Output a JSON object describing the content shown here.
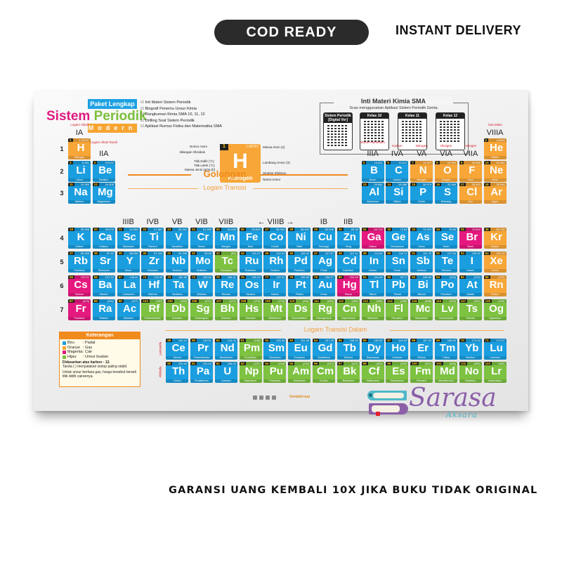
{
  "badges": {
    "cod": "COD READY",
    "instant": "INSTANT DELIVERY"
  },
  "footer_text": "GARANSI UANG KEMBALI 10X JIKA BUKU TIDAK ORIGINAL",
  "colors": {
    "padat": "#1a9ee0",
    "gas": "#f7a637",
    "cair": "#e5197f",
    "buatan": "#7dc241",
    "accent": "#f08a1c"
  },
  "poster": {
    "paket": "Paket Lengkap",
    "title_a": "Sistem",
    "title_b": "Periodik",
    "modern": "Modern",
    "checklist": [
      "Inti Materi Sistem Periodik",
      "Biografi Penemu Unsur Kimia",
      "Rangkuman Kimia SMA 10, 11, 12",
      "Drilling Soal Sistem Periodik",
      "Aplikasi Rumus Fisika dan Matematika SMA"
    ],
    "qr": {
      "title": "Inti Materi Kimia SMA",
      "subtitle": "Scan menggunakan Aplikasi Sistem Periodik Genta",
      "cards": [
        "Sistem Periodik [Digital Ver]",
        "Kelas 10",
        "Kelas 11",
        "Kelas 12"
      ]
    },
    "key": {
      "number": "1",
      "mass": "1.00797",
      "symbol": "H",
      "name": "Hidrogen",
      "left_labels": [
        "Nomor Atom",
        "Bilangan Oksidasi",
        "Titik Didih (°C)",
        "Titik Leleh (°C)",
        "Massa Jenis (g/mL(l))"
      ],
      "right_labels": [
        "Massa Atom (2)",
        "Lambang Unsur (3)",
        "Struktur Elektron",
        "Nama Unsur"
      ]
    },
    "golongan": "Golongan",
    "logam_transisi": "Logam Transisi",
    "logam_transisi_dalam": "Logam Transisi Dalam",
    "periods": [
      "1",
      "2",
      "3",
      "4",
      "5",
      "6",
      "7"
    ],
    "group_labels": {
      "IA": "IA",
      "IIA": "IIA",
      "IIIB": "IIIB",
      "IVB": "IVB",
      "VB": "VB",
      "VIB": "VIB",
      "VIIB": "VIIB",
      "VIIIB": "VIIIB",
      "IB": "IB",
      "IIB": "IIB",
      "IIIA": "IIIA",
      "IVA": "IVA",
      "VA": "VA",
      "VIA": "VIA",
      "VIIA": "VIIA",
      "VIIIA": "VIIIA"
    },
    "category_labels": {
      "IA": "Logam Alkali",
      "IIA": "Logam Alkali Tanah",
      "IIIA": "Boron-Aluminium",
      "IVA": "Karbon",
      "VA": "Nitrogen",
      "VIA": "Oksigen",
      "VIIA": "Halogen",
      "VIIIA": "Gas Mulia"
    },
    "series_labels": {
      "lanthanide": "Lantanida",
      "actinide": "Aktinida"
    },
    "legend": {
      "title": "Keterangan",
      "items": [
        [
          "Biru",
          ": Padat"
        ],
        [
          "Oranye",
          ": Gas"
        ],
        [
          "Magenta",
          ": Cair"
        ],
        [
          "Hijau",
          ": Unsur buatan"
        ]
      ],
      "note_bold": "Didasarkan atas karbon - 12.",
      "note1": "Tanda ( ) menyatakan isotop paling stabil.",
      "note2": "Untuk unsur berfasa gas, harga tersebut berarti titik didih cairannya."
    },
    "publisher": "GentaGroup",
    "brand": {
      "name": "Sarasa",
      "sub": "Aksara"
    }
  },
  "elements": [
    [
      1,
      "H",
      "Hidrogen",
      "1.00797",
      "g"
    ],
    [
      2,
      "He",
      "Helium",
      "4.0026",
      "g"
    ],
    [
      3,
      "Li",
      "Litium",
      "6.941",
      "s"
    ],
    [
      4,
      "Be",
      "Berilium",
      "9.0122",
      "s"
    ],
    [
      5,
      "B",
      "Boron",
      "10.811",
      "s"
    ],
    [
      6,
      "C",
      "Karbon",
      "12.011",
      "s"
    ],
    [
      7,
      "N",
      "Nitrogen",
      "14.007",
      "g"
    ],
    [
      8,
      "O",
      "Oksigen",
      "15.999",
      "g"
    ],
    [
      9,
      "F",
      "Fluor",
      "18.998",
      "g"
    ],
    [
      10,
      "Ne",
      "Neon",
      "20.180",
      "g"
    ],
    [
      11,
      "Na",
      "Natrium",
      "22.990",
      "s"
    ],
    [
      12,
      "Mg",
      "Magnesium",
      "24.305",
      "s"
    ],
    [
      13,
      "Al",
      "Aluminium",
      "26.982",
      "s"
    ],
    [
      14,
      "Si",
      "Silikon",
      "28.086",
      "s"
    ],
    [
      15,
      "P",
      "Fosfor",
      "30.974",
      "s"
    ],
    [
      16,
      "S",
      "Belerang",
      "32.065",
      "s"
    ],
    [
      17,
      "Cl",
      "Klor",
      "35.453",
      "g"
    ],
    [
      18,
      "Ar",
      "Argon",
      "39.948",
      "g"
    ],
    [
      19,
      "K",
      "Kalium",
      "39.098",
      "s"
    ],
    [
      20,
      "Ca",
      "Kalsium",
      "40.078",
      "s"
    ],
    [
      21,
      "Sc",
      "Skandium",
      "44.956",
      "s"
    ],
    [
      22,
      "Ti",
      "Titanium",
      "47.867",
      "s"
    ],
    [
      23,
      "V",
      "Vanadium",
      "50.942",
      "s"
    ],
    [
      24,
      "Cr",
      "Khrom",
      "51.996",
      "s"
    ],
    [
      25,
      "Mn",
      "Mangan",
      "54.938",
      "s"
    ],
    [
      26,
      "Fe",
      "Besi",
      "55.845",
      "s"
    ],
    [
      27,
      "Co",
      "Kobalt",
      "58.933",
      "s"
    ],
    [
      28,
      "Ni",
      "Nikel",
      "58.693",
      "s"
    ],
    [
      29,
      "Cu",
      "Tembaga",
      "63.546",
      "s"
    ],
    [
      30,
      "Zn",
      "Seng",
      "65.38",
      "s"
    ],
    [
      31,
      "Ga",
      "Galium",
      "69.723",
      "l"
    ],
    [
      32,
      "Ge",
      "Germanium",
      "72.63",
      "s"
    ],
    [
      33,
      "As",
      "Arsen",
      "74.922",
      "s"
    ],
    [
      34,
      "Se",
      "Selen",
      "78.96",
      "s"
    ],
    [
      35,
      "Br",
      "Brom",
      "79.904",
      "l"
    ],
    [
      36,
      "Kr",
      "Kripton",
      "83.798",
      "g"
    ],
    [
      37,
      "Rb",
      "Rubidium",
      "85.468",
      "s"
    ],
    [
      38,
      "Sr",
      "Stronsium",
      "87.62",
      "s"
    ],
    [
      39,
      "Y",
      "Itrium",
      "88.906",
      "s"
    ],
    [
      40,
      "Zr",
      "Zirkonium",
      "91.224",
      "s"
    ],
    [
      41,
      "Nb",
      "Niobium",
      "92.906",
      "s"
    ],
    [
      42,
      "Mo",
      "Molibden",
      "95.96",
      "s"
    ],
    [
      43,
      "Tc",
      "Teknesium",
      "(98)",
      "x"
    ],
    [
      44,
      "Ru",
      "Rutenium",
      "101.07",
      "s"
    ],
    [
      45,
      "Rh",
      "Rodium",
      "102.91",
      "s"
    ],
    [
      46,
      "Pd",
      "Paladium",
      "106.42",
      "s"
    ],
    [
      47,
      "Ag",
      "Perak",
      "107.87",
      "s"
    ],
    [
      48,
      "Cd",
      "Kadmium",
      "112.41",
      "s"
    ],
    [
      49,
      "In",
      "Indium",
      "114.82",
      "s"
    ],
    [
      50,
      "Sn",
      "Timah",
      "118.71",
      "s"
    ],
    [
      51,
      "Sb",
      "Antimon",
      "121.76",
      "s"
    ],
    [
      52,
      "Te",
      "Telurium",
      "127.60",
      "s"
    ],
    [
      53,
      "I",
      "Iodium",
      "126.90",
      "s"
    ],
    [
      54,
      "Xe",
      "Xenon",
      "131.29",
      "g"
    ],
    [
      55,
      "Cs",
      "Sesium",
      "132.91",
      "l"
    ],
    [
      56,
      "Ba",
      "Barium",
      "137.33",
      "s"
    ],
    [
      57,
      "La",
      "Lantanum",
      "138.91",
      "s"
    ],
    [
      58,
      "Ce",
      "Serium",
      "140.12",
      "s"
    ],
    [
      59,
      "Pr",
      "Praseodimium",
      "140.91",
      "s"
    ],
    [
      60,
      "Nd",
      "Neodimium",
      "144.24",
      "s"
    ],
    [
      61,
      "Pm",
      "Prometium",
      "(145)",
      "x"
    ],
    [
      62,
      "Sm",
      "Samarium",
      "150.36",
      "s"
    ],
    [
      63,
      "Eu",
      "Europium",
      "151.96",
      "s"
    ],
    [
      64,
      "Gd",
      "Gadolinium",
      "157.25",
      "s"
    ],
    [
      65,
      "Tb",
      "Terbium",
      "158.93",
      "s"
    ],
    [
      66,
      "Dy",
      "Disprosium",
      "162.50",
      "s"
    ],
    [
      67,
      "Ho",
      "Holmium",
      "164.93",
      "s"
    ],
    [
      68,
      "Er",
      "Erbium",
      "167.26",
      "s"
    ],
    [
      69,
      "Tm",
      "Tulium",
      "168.93",
      "s"
    ],
    [
      70,
      "Yb",
      "Iterbium",
      "173.05",
      "s"
    ],
    [
      71,
      "Lu",
      "Lutesium",
      "174.97",
      "s"
    ],
    [
      72,
      "Hf",
      "Hafnium",
      "178.49",
      "s"
    ],
    [
      73,
      "Ta",
      "Tantalum",
      "180.95",
      "s"
    ],
    [
      74,
      "W",
      "Wolfram",
      "183.84",
      "s"
    ],
    [
      75,
      "Re",
      "Renium",
      "186.21",
      "s"
    ],
    [
      76,
      "Os",
      "Osmium",
      "190.23",
      "s"
    ],
    [
      77,
      "Ir",
      "Iridium",
      "192.22",
      "s"
    ],
    [
      78,
      "Pt",
      "Platina",
      "195.08",
      "s"
    ],
    [
      79,
      "Au",
      "Emas",
      "196.97",
      "s"
    ],
    [
      80,
      "Hg",
      "Raksa",
      "200.59",
      "l"
    ],
    [
      81,
      "Tl",
      "Talium",
      "204.38",
      "s"
    ],
    [
      82,
      "Pb",
      "Timbal",
      "207.2",
      "s"
    ],
    [
      83,
      "Bi",
      "Bismut",
      "208.98",
      "s"
    ],
    [
      84,
      "Po",
      "Polonium",
      "(209)",
      "s"
    ],
    [
      85,
      "At",
      "Astatin",
      "(210)",
      "s"
    ],
    [
      86,
      "Rn",
      "Radon",
      "(222)",
      "g"
    ],
    [
      87,
      "Fr",
      "Fransium",
      "(223)",
      "l"
    ],
    [
      88,
      "Ra",
      "Radium",
      "(226)",
      "s"
    ],
    [
      89,
      "Ac",
      "Aktinium",
      "(227)",
      "s"
    ],
    [
      90,
      "Th",
      "Torium",
      "232.04",
      "s"
    ],
    [
      91,
      "Pa",
      "Protaktinium",
      "231.04",
      "s"
    ],
    [
      92,
      "U",
      "Uranium",
      "238.03",
      "s"
    ],
    [
      93,
      "Np",
      "Neptunium",
      "(237)",
      "x"
    ],
    [
      94,
      "Pu",
      "Plutonium",
      "(244)",
      "x"
    ],
    [
      95,
      "Am",
      "Amerisium",
      "(243)",
      "x"
    ],
    [
      96,
      "Cm",
      "Kurium",
      "(247)",
      "x"
    ],
    [
      97,
      "Bk",
      "Berkelium",
      "(247)",
      "x"
    ],
    [
      98,
      "Cf",
      "Kalifornium",
      "(251)",
      "x"
    ],
    [
      99,
      "Es",
      "Einsteinium",
      "(252)",
      "x"
    ],
    [
      100,
      "Fm",
      "Fermium",
      "(257)",
      "x"
    ],
    [
      101,
      "Md",
      "Mendelevium",
      "(258)",
      "x"
    ],
    [
      102,
      "No",
      "Nobelium",
      "(259)",
      "x"
    ],
    [
      103,
      "Lr",
      "Lawrensium",
      "(262)",
      "x"
    ],
    [
      104,
      "Rf",
      "Rutherfordium",
      "(267)",
      "x"
    ],
    [
      105,
      "Db",
      "Dubnium",
      "(268)",
      "x"
    ],
    [
      106,
      "Sg",
      "Seaborgium",
      "(271)",
      "x"
    ],
    [
      107,
      "Bh",
      "Bohrium",
      "(272)",
      "x"
    ],
    [
      108,
      "Hs",
      "Hassium",
      "(270)",
      "x"
    ],
    [
      109,
      "Mt",
      "Meitnerium",
      "(276)",
      "x"
    ],
    [
      110,
      "Ds",
      "Darmstadtium",
      "(281)",
      "x"
    ],
    [
      111,
      "Rg",
      "Roentgenium",
      "(280)",
      "x"
    ],
    [
      112,
      "Cn",
      "Copernicium",
      "(285)",
      "x"
    ],
    [
      113,
      "Nh",
      "Nihonium",
      "(284)",
      "x"
    ],
    [
      114,
      "Fl",
      "Flerovium",
      "(289)",
      "x"
    ],
    [
      115,
      "Mc",
      "Moscovium",
      "(288)",
      "x"
    ],
    [
      116,
      "Lv",
      "Livermorium",
      "(293)",
      "x"
    ],
    [
      117,
      "Ts",
      "Tenesin",
      "(294)",
      "x"
    ],
    [
      118,
      "Og",
      "Oganeson",
      "(294)",
      "x"
    ]
  ]
}
